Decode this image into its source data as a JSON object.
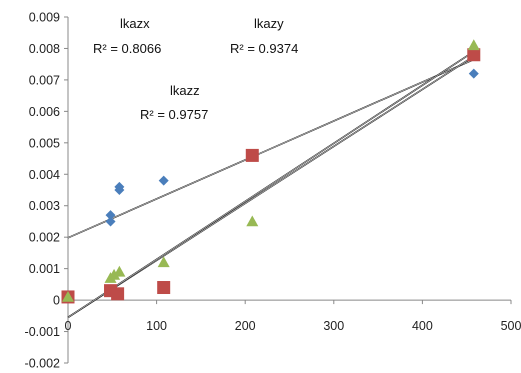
{
  "chart_data": {
    "type": "scatter",
    "xlim": [
      0,
      500
    ],
    "ylim": [
      -0.002,
      0.009
    ],
    "x_ticks": [
      "0",
      "100",
      "200",
      "300",
      "400",
      "500"
    ],
    "y_ticks": [
      "-0.002",
      "-0.001",
      "0",
      "0.001",
      "0.002",
      "0.003",
      "0.004",
      "0.005",
      "0.006",
      "0.007",
      "0.008",
      "0.009"
    ],
    "grid": false,
    "legend": "none",
    "series": [
      {
        "marker": "diamond",
        "color": "#4a7ebb",
        "points": [
          [
            48,
            0.0025
          ],
          [
            48,
            0.0027
          ],
          [
            58,
            0.0035
          ],
          [
            58,
            0.0036
          ],
          [
            108,
            0.0038
          ],
          [
            458,
            0.0072
          ]
        ],
        "trendline": {
          "label": "lkazx",
          "r2_text": "R² = 0.8066",
          "start": [
            0,
            0.00198
          ],
          "end": [
            458,
            0.00765
          ]
        }
      },
      {
        "marker": "square",
        "color": "#be4b48",
        "points": [
          [
            0,
            0.0001
          ],
          [
            48,
            0.0003
          ],
          [
            56,
            0.0002
          ],
          [
            108,
            0.0004
          ],
          [
            208,
            0.0046
          ],
          [
            458,
            0.0078
          ]
        ],
        "trendline": {
          "label": "lkazy",
          "r2_text": "R² = 0.9374",
          "start": [
            0,
            -0.00055
          ],
          "end": [
            458,
            0.00775
          ]
        }
      },
      {
        "marker": "triangle",
        "color": "#98b954",
        "points": [
          [
            0,
            0.0001
          ],
          [
            48,
            0.0007
          ],
          [
            52,
            0.0008
          ],
          [
            58,
            0.0009
          ],
          [
            108,
            0.0012
          ],
          [
            208,
            0.0025
          ],
          [
            458,
            0.0081
          ]
        ],
        "trendline": {
          "label": "lkazz",
          "r2_text": "R² = 0.9757",
          "start": [
            0,
            -0.00055
          ],
          "end": [
            458,
            0.0079
          ]
        }
      }
    ]
  }
}
